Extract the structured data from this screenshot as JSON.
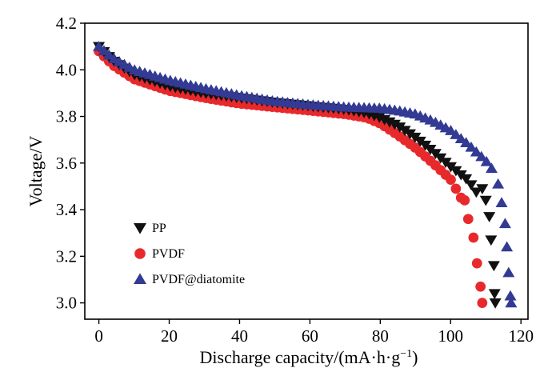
{
  "chart_data": {
    "type": "scatter",
    "title": "",
    "xlabel": "Discharge capacity/(mA·h·g",
    "xlabel_sup": "−1",
    "xlabel_close": ")",
    "ylabel": "Voltage/V",
    "xlim": [
      -4,
      122
    ],
    "ylim": [
      2.93,
      4.2
    ],
    "xticks": [
      0,
      20,
      40,
      60,
      80,
      100,
      120
    ],
    "xtick_labels": [
      "0",
      "20",
      "40",
      "60",
      "80",
      "100",
      "120"
    ],
    "yticks": [
      3.0,
      3.2,
      3.4,
      3.6,
      3.8,
      4.0,
      4.2
    ],
    "ytick_labels": [
      "3.0",
      "3.2",
      "3.4",
      "3.6",
      "3.8",
      "4.0",
      "4.2"
    ],
    "grid": false,
    "legend_position": "bottom-left",
    "series": [
      {
        "name": "PP",
        "marker": "triangle-down",
        "color": "#111111",
        "curve": [
          [
            0,
            4.1
          ],
          [
            4,
            4.04
          ],
          [
            10,
            3.98
          ],
          [
            20,
            3.93
          ],
          [
            30,
            3.9
          ],
          [
            40,
            3.88
          ],
          [
            50,
            3.86
          ],
          [
            60,
            3.845
          ],
          [
            70,
            3.83
          ],
          [
            76,
            3.815
          ],
          [
            80,
            3.795
          ],
          [
            85,
            3.76
          ],
          [
            90,
            3.71
          ],
          [
            95,
            3.65
          ],
          [
            100,
            3.585
          ],
          [
            105,
            3.525
          ],
          [
            108,
            3.46
          ],
          [
            110,
            3.39
          ],
          [
            111,
            3.3
          ],
          [
            112,
            3.15
          ],
          [
            112.5,
            3.05
          ],
          [
            112.7,
            3.0
          ]
        ],
        "step": 1.45,
        "extra_points": [
          [
            109,
            3.49
          ],
          [
            110,
            3.44
          ],
          [
            111,
            3.37
          ],
          [
            111.5,
            3.27
          ],
          [
            112.3,
            3.16
          ],
          [
            112.5,
            3.04
          ],
          [
            112.7,
            3.0
          ]
        ]
      },
      {
        "name": "PVDF",
        "marker": "circle",
        "color": "#e8292c",
        "curve": [
          [
            0,
            4.08
          ],
          [
            4,
            4.02
          ],
          [
            10,
            3.96
          ],
          [
            20,
            3.91
          ],
          [
            30,
            3.88
          ],
          [
            40,
            3.855
          ],
          [
            50,
            3.84
          ],
          [
            60,
            3.825
          ],
          [
            70,
            3.81
          ],
          [
            76,
            3.795
          ],
          [
            80,
            3.77
          ],
          [
            85,
            3.72
          ],
          [
            90,
            3.665
          ],
          [
            95,
            3.6
          ],
          [
            100,
            3.53
          ],
          [
            103,
            3.45
          ],
          [
            105,
            3.36
          ],
          [
            106.5,
            3.26
          ],
          [
            107.5,
            3.17
          ],
          [
            108.5,
            3.07
          ],
          [
            109,
            3.0
          ]
        ],
        "step": 1.45,
        "extra_points": [
          [
            104,
            3.44
          ],
          [
            105,
            3.36
          ],
          [
            106.5,
            3.28
          ],
          [
            107.5,
            3.17
          ],
          [
            108.5,
            3.07
          ],
          [
            109,
            3.0
          ]
        ]
      },
      {
        "name": "PVDF@diatomite",
        "marker": "triangle-up",
        "color": "#323a93",
        "curve": [
          [
            0,
            4.1
          ],
          [
            4,
            4.05
          ],
          [
            10,
            4.0
          ],
          [
            20,
            3.955
          ],
          [
            30,
            3.92
          ],
          [
            40,
            3.89
          ],
          [
            50,
            3.865
          ],
          [
            60,
            3.85
          ],
          [
            70,
            3.84
          ],
          [
            80,
            3.835
          ],
          [
            85,
            3.825
          ],
          [
            90,
            3.81
          ],
          [
            95,
            3.78
          ],
          [
            100,
            3.74
          ],
          [
            105,
            3.68
          ],
          [
            110,
            3.61
          ],
          [
            113,
            3.55
          ],
          [
            114.5,
            3.43
          ],
          [
            115.5,
            3.33
          ],
          [
            116,
            3.22
          ],
          [
            116.5,
            3.12
          ],
          [
            117,
            3.02
          ],
          [
            117.2,
            3.0
          ]
        ],
        "step": 1.45,
        "extra_points": [
          [
            113.5,
            3.51
          ],
          [
            114.5,
            3.43
          ],
          [
            115.5,
            3.34
          ],
          [
            116,
            3.24
          ],
          [
            116.5,
            3.13
          ],
          [
            117,
            3.03
          ],
          [
            117.2,
            3.0
          ]
        ]
      }
    ]
  }
}
